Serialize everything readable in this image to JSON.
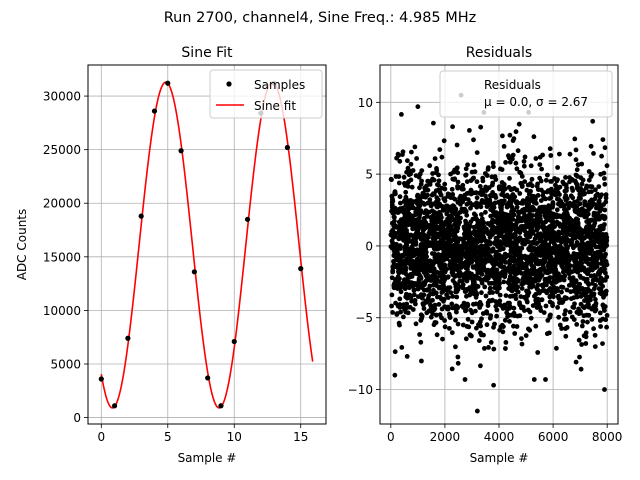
{
  "figure": {
    "suptitle": "Run 2700, channel4, Sine Freq.: 4.985 MHz"
  },
  "chart_data": [
    {
      "type": "line",
      "title": "Sine Fit",
      "xlabel": "Sample #",
      "ylabel": "ADC Counts",
      "xlim": [
        -1.0,
        16.9
      ],
      "ylim": [
        -600,
        32900
      ],
      "xticks": [
        0,
        5,
        10,
        15
      ],
      "yticks": [
        0,
        5000,
        10000,
        15000,
        20000,
        25000,
        30000
      ],
      "grid": true,
      "legend": {
        "placement": "top-right",
        "entries": [
          "Samples",
          "Sine fit"
        ]
      },
      "series": [
        {
          "name": "Samples",
          "kind": "scatter",
          "color": "#000000",
          "x": [
            0,
            1,
            2,
            3,
            4,
            5,
            6,
            7,
            8,
            9,
            10,
            11,
            12,
            13,
            14,
            15
          ],
          "y": [
            3600,
            1100,
            7400,
            18800,
            28600,
            31200,
            24900,
            13600,
            3700,
            1100,
            7100,
            18500,
            28400,
            31200,
            25200,
            13900
          ]
        },
        {
          "name": "Sine fit",
          "kind": "line",
          "color": "#ff0000",
          "model": {
            "offset": 16100,
            "amplitude": 15200,
            "period": 8.025,
            "peak_x": 4.85,
            "x_start": 0,
            "x_end": 15.9
          }
        }
      ]
    },
    {
      "type": "scatter",
      "title": "Residuals",
      "xlabel": "Sample #",
      "ylabel": "",
      "xlim": [
        -400,
        8400
      ],
      "ylim": [
        -12.4,
        12.6
      ],
      "xticks": [
        0,
        2000,
        4000,
        6000,
        8000
      ],
      "yticks": [
        -10,
        -5,
        0,
        5,
        10
      ],
      "grid": true,
      "legend": {
        "placement": "top-right",
        "entries": [
          "Residuals",
          "μ = 0.0, σ = 2.67"
        ]
      },
      "series": [
        {
          "name": "Residuals",
          "color": "#000000",
          "n_points": 8000,
          "mean": 0.0,
          "sigma": 2.67,
          "notable_points": [
            {
              "x": 150,
              "y": -9.0
            },
            {
              "x": 2600,
              "y": 10.5
            },
            {
              "x": 3200,
              "y": -11.5
            },
            {
              "x": 3800,
              "y": -9.7
            },
            {
              "x": 7900,
              "y": -10.0
            },
            {
              "x": 1000,
              "y": 9.7
            }
          ]
        }
      ]
    }
  ]
}
